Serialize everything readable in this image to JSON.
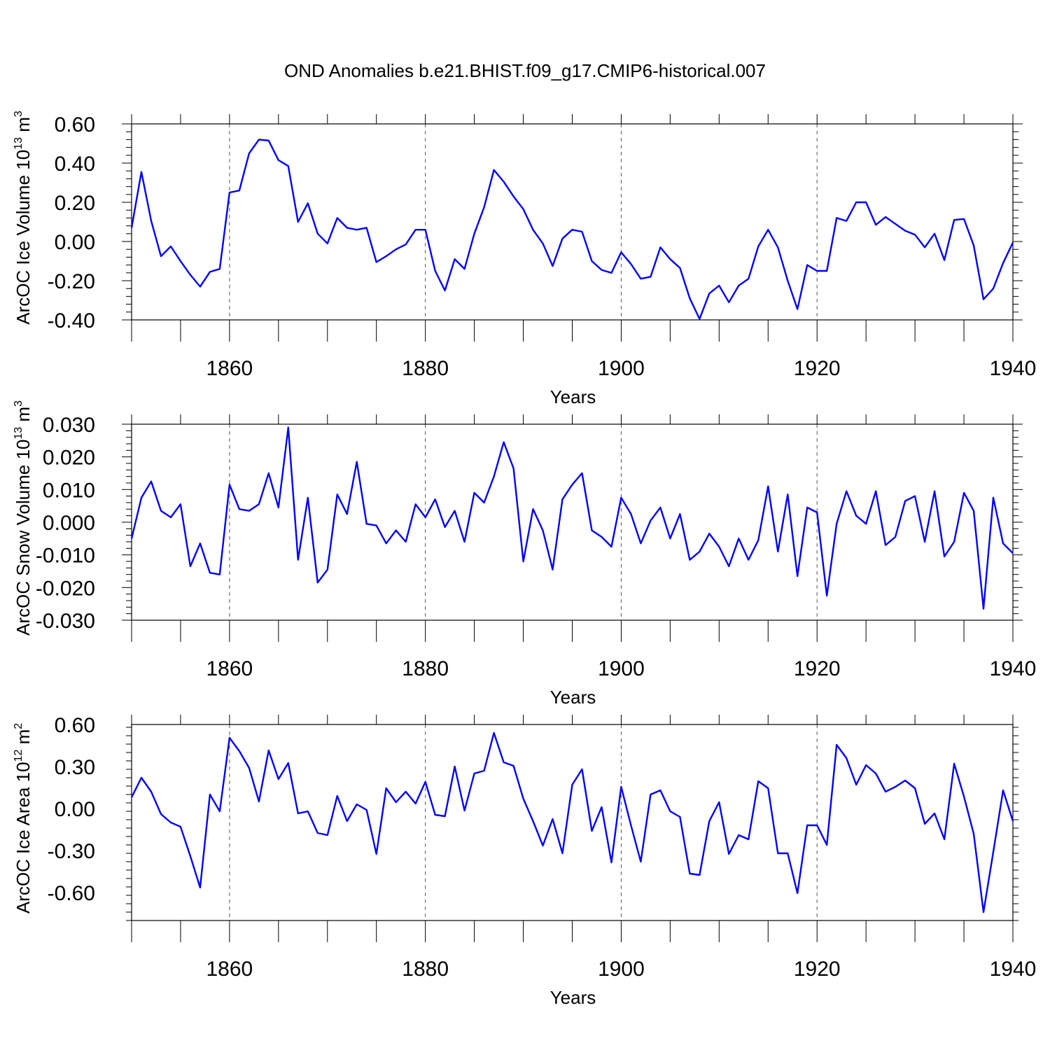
{
  "title": "OND Anomalies b.e21.BHIST.f09_g17.CMIP6-historical.007",
  "line_color": "#0000ff",
  "chart_data": [
    {
      "type": "line",
      "xlabel": "Years",
      "ylabel": "ArcOC Ice Volume 10",
      "ylabel_exp": "13",
      "ylabel_unit": " m",
      "ylabel_unit_exp": "3",
      "xlim": [
        1850,
        1940
      ],
      "ylim": [
        -0.4,
        0.6
      ],
      "yticks": [
        -0.4,
        -0.2,
        0.0,
        0.2,
        0.4,
        0.6
      ],
      "ytick_labels": [
        "-0.40",
        "-0.20",
        "0.00",
        "0.20",
        "0.40",
        "0.60"
      ],
      "xticks": [
        1860,
        1880,
        1900,
        1920,
        1940
      ],
      "xtick_labels": [
        "1860",
        "1880",
        "1900",
        "1920",
        "1940"
      ],
      "x_start": 1850,
      "values": [
        0.07,
        0.355,
        0.105,
        -0.075,
        -0.025,
        -0.1,
        -0.17,
        -0.23,
        -0.155,
        -0.14,
        0.25,
        0.26,
        0.45,
        0.52,
        0.515,
        0.415,
        0.385,
        0.1,
        0.195,
        0.04,
        -0.01,
        0.12,
        0.07,
        0.06,
        0.07,
        -0.105,
        -0.075,
        -0.04,
        -0.015,
        0.06,
        0.06,
        -0.15,
        -0.25,
        -0.09,
        -0.14,
        0.04,
        0.175,
        0.365,
        0.305,
        0.23,
        0.165,
        0.06,
        -0.01,
        -0.125,
        0.015,
        0.06,
        0.05,
        -0.1,
        -0.145,
        -0.16,
        -0.055,
        -0.115,
        -0.19,
        -0.18,
        -0.03,
        -0.09,
        -0.135,
        -0.29,
        -0.395,
        -0.265,
        -0.225,
        -0.31,
        -0.225,
        -0.19,
        -0.025,
        0.06,
        -0.03,
        -0.2,
        -0.345,
        -0.12,
        -0.15,
        -0.15,
        0.12,
        0.105,
        0.2,
        0.2,
        0.085,
        0.125,
        0.09,
        0.055,
        0.035,
        -0.03,
        0.04,
        -0.095,
        0.11,
        0.115,
        -0.02,
        -0.295,
        -0.24,
        -0.11,
        -0.005
      ]
    },
    {
      "type": "line",
      "xlabel": "Years",
      "ylabel": "ArcOC Snow Volume 10",
      "ylabel_exp": "13",
      "ylabel_unit": " m",
      "ylabel_unit_exp": "3",
      "xlim": [
        1850,
        1940
      ],
      "ylim": [
        -0.03,
        0.03
      ],
      "yticks": [
        -0.03,
        -0.02,
        -0.01,
        0.0,
        0.01,
        0.02,
        0.03
      ],
      "ytick_labels": [
        "-0.030",
        "-0.020",
        "-0.010",
        "0.000",
        "0.010",
        "0.020",
        "0.030"
      ],
      "xticks": [
        1860,
        1880,
        1900,
        1920,
        1940
      ],
      "xtick_labels": [
        "1860",
        "1880",
        "1900",
        "1920",
        "1940"
      ],
      "x_start": 1850,
      "values": [
        -0.005,
        0.0075,
        0.0125,
        0.0035,
        0.0015,
        0.0055,
        -0.0135,
        -0.0065,
        -0.0155,
        -0.016,
        0.0115,
        0.004,
        0.0035,
        0.0055,
        0.015,
        0.0045,
        0.029,
        -0.0115,
        0.0075,
        -0.0185,
        -0.0145,
        0.0085,
        0.0025,
        0.0185,
        -0.0005,
        -0.001,
        -0.0065,
        -0.0025,
        -0.006,
        0.0055,
        0.0015,
        0.007,
        -0.0015,
        0.0035,
        -0.006,
        0.009,
        0.006,
        0.014,
        0.0245,
        0.0165,
        -0.012,
        0.004,
        -0.0025,
        -0.0145,
        0.007,
        0.0115,
        0.015,
        -0.0025,
        -0.0045,
        -0.0075,
        0.0075,
        0.0025,
        -0.0065,
        0.0005,
        0.0045,
        -0.005,
        0.0025,
        -0.0115,
        -0.009,
        -0.0035,
        -0.0075,
        -0.0135,
        -0.005,
        -0.0115,
        -0.0055,
        0.011,
        -0.009,
        0.0085,
        -0.0165,
        0.0045,
        0.003,
        -0.0225,
        -0.0005,
        0.0095,
        0.002,
        -0.0005,
        0.0095,
        -0.007,
        -0.0045,
        0.0065,
        0.008,
        -0.006,
        0.0095,
        -0.0105,
        -0.006,
        0.009,
        0.0035,
        -0.0265,
        0.0075,
        -0.0065,
        -0.0095
      ]
    },
    {
      "type": "line",
      "xlabel": "Years",
      "ylabel": "ArcOC Ice Area 10",
      "ylabel_exp": "12",
      "ylabel_unit": " m",
      "ylabel_unit_exp": "2",
      "xlim": [
        1850,
        1940
      ],
      "ylim": [
        -0.8,
        0.6
      ],
      "yticks": [
        -0.6,
        -0.3,
        0.0,
        0.3,
        0.6
      ],
      "ytick_labels": [
        "-0.60",
        "-0.30",
        "0.00",
        "0.30",
        "0.60"
      ],
      "xticks": [
        1860,
        1880,
        1900,
        1920,
        1940
      ],
      "xtick_labels": [
        "1860",
        "1880",
        "1900",
        "1920",
        "1940"
      ],
      "x_start": 1850,
      "values": [
        0.08,
        0.22,
        0.12,
        -0.04,
        -0.1,
        -0.13,
        -0.34,
        -0.565,
        0.1,
        -0.02,
        0.505,
        0.41,
        0.29,
        0.05,
        0.415,
        0.21,
        0.325,
        -0.035,
        -0.02,
        -0.175,
        -0.19,
        0.09,
        -0.09,
        0.03,
        -0.01,
        -0.325,
        0.145,
        0.045,
        0.12,
        0.035,
        0.19,
        -0.045,
        -0.055,
        0.3,
        -0.015,
        0.25,
        0.27,
        0.54,
        0.33,
        0.305,
        0.07,
        -0.09,
        -0.265,
        -0.075,
        -0.32,
        0.17,
        0.28,
        -0.16,
        0.01,
        -0.385,
        0.155,
        -0.12,
        -0.38,
        0.1,
        0.13,
        -0.02,
        -0.06,
        -0.465,
        -0.475,
        -0.09,
        0.045,
        -0.325,
        -0.19,
        -0.22,
        0.195,
        0.145,
        -0.32,
        -0.32,
        -0.605,
        -0.12,
        -0.12,
        -0.26,
        0.455,
        0.36,
        0.17,
        0.31,
        0.25,
        0.12,
        0.155,
        0.2,
        0.145,
        -0.11,
        -0.035,
        -0.22,
        0.32,
        0.085,
        -0.18,
        -0.74,
        -0.31,
        0.13,
        -0.09
      ]
    }
  ]
}
